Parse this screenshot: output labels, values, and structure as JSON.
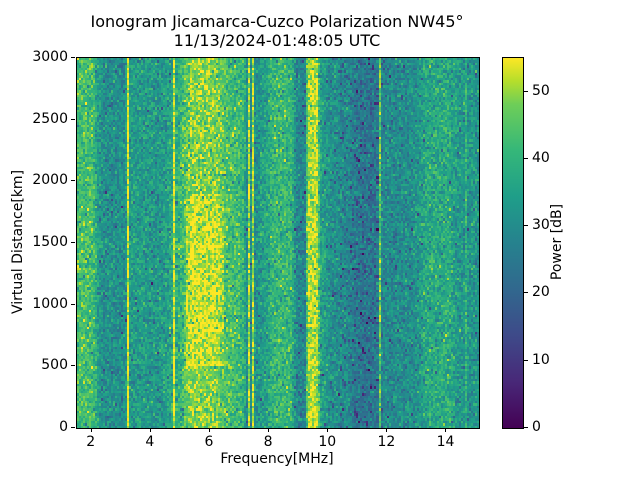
{
  "chart_data": {
    "type": "heatmap",
    "title": "Ionogram Jicamarca-Cuzco Polarization NW45°",
    "subtitle": "11/13/2024-01:48:05 UTC",
    "xlabel": "Frequency[MHz]",
    "ylabel": "Virtual Distance[km]",
    "x_range": [
      1.5,
      15.1
    ],
    "y_range": [
      0,
      3000
    ],
    "x_ticks": [
      2,
      4,
      6,
      8,
      10,
      12,
      14
    ],
    "y_ticks": [
      0,
      500,
      1000,
      1500,
      2000,
      2500,
      3000
    ],
    "colorbar": {
      "label": "Power [dB]",
      "ticks": [
        0,
        10,
        20,
        30,
        40,
        50
      ],
      "vmin": 0,
      "vmax": 55,
      "colormap": "viridis",
      "stops": [
        {
          "t": 0.0,
          "c": "#440154"
        },
        {
          "t": 0.125,
          "c": "#482878"
        },
        {
          "t": 0.25,
          "c": "#3e4a89"
        },
        {
          "t": 0.375,
          "c": "#31688e"
        },
        {
          "t": 0.5,
          "c": "#26828e"
        },
        {
          "t": 0.625,
          "c": "#1f9e89"
        },
        {
          "t": 0.75,
          "c": "#35b779"
        },
        {
          "t": 0.875,
          "c": "#6ece58"
        },
        {
          "t": 0.9375,
          "c": "#b5de2b"
        },
        {
          "t": 1.0,
          "c": "#fde725"
        }
      ]
    },
    "profile_db_vs_mhz": [
      [
        1.49,
        43
      ],
      [
        2.05,
        43
      ],
      [
        2.22,
        34
      ],
      [
        2.45,
        31
      ],
      [
        3.1,
        31
      ],
      [
        3.35,
        34
      ],
      [
        4.25,
        33
      ],
      [
        4.6,
        35
      ],
      [
        4.85,
        38
      ],
      [
        5.15,
        45
      ],
      [
        5.35,
        49
      ],
      [
        6.2,
        49
      ],
      [
        6.5,
        44
      ],
      [
        6.95,
        42
      ],
      [
        7.15,
        40
      ],
      [
        7.24,
        30
      ],
      [
        7.5,
        31
      ],
      [
        7.7,
        33
      ],
      [
        7.95,
        36
      ],
      [
        8.1,
        41
      ],
      [
        8.75,
        41
      ],
      [
        8.95,
        29
      ],
      [
        9.25,
        28
      ],
      [
        9.33,
        52
      ],
      [
        9.62,
        52
      ],
      [
        9.75,
        36
      ],
      [
        10.1,
        31
      ],
      [
        10.7,
        29
      ],
      [
        10.95,
        25
      ],
      [
        11.6,
        24
      ],
      [
        11.85,
        29
      ],
      [
        12.9,
        31
      ],
      [
        13.35,
        37
      ],
      [
        14.1,
        38
      ],
      [
        14.4,
        33
      ],
      [
        15.08,
        32
      ]
    ],
    "rfi_lines": [
      {
        "freq": 3.22,
        "power": 54
      },
      {
        "freq": 4.74,
        "power": 54
      },
      {
        "freq": 7.28,
        "power": 51
      },
      {
        "freq": 7.39,
        "power": 51
      },
      {
        "freq": 9.27,
        "power": 44
      },
      {
        "freq": 11.67,
        "power": 47
      },
      {
        "freq": 14.62,
        "power": 39
      }
    ],
    "enhancement_blob": {
      "freq_min": 5.2,
      "freq_max": 6.45,
      "km_min": 500,
      "km_max": 1900,
      "boost": 4
    },
    "noise": {
      "std": 4.5,
      "dark_speckle_prob": 0.02,
      "dark_speckle_depth": [
        8,
        18
      ],
      "dark_regions": [
        {
          "freq_min": 10.4,
          "freq_max": 11.75,
          "prob": 0.09
        },
        {
          "freq_min": 8.85,
          "freq_max": 9.3,
          "prob": 0.05
        }
      ]
    },
    "grid": {
      "cols": 200,
      "rows": 150
    },
    "seed": 7
  }
}
